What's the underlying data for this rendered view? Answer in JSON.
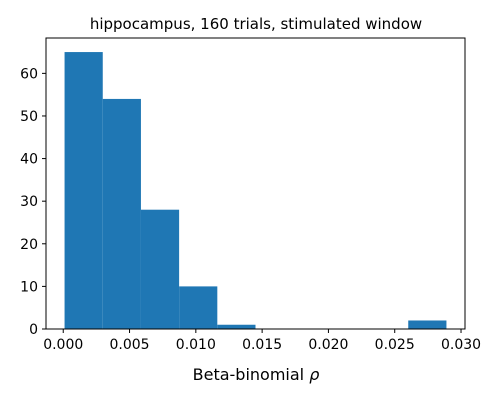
{
  "chart_data": {
    "type": "bar",
    "title": "hippocampus, 160 trials, stimulated window",
    "xlabel": "Beta-binomial ",
    "xlabel_symbol": "ρ",
    "ylabel": "",
    "bin_edges": [
      0.0001,
      0.00298,
      0.00586,
      0.00874,
      0.01162,
      0.0145,
      0.01738,
      0.02026,
      0.02314,
      0.02602,
      0.0289
    ],
    "values": [
      65,
      54,
      28,
      10,
      1,
      0,
      0,
      0,
      0,
      2
    ],
    "xlim": [
      -0.0013,
      0.0303
    ],
    "ylim": [
      0,
      68.3
    ],
    "x_ticks": [
      {
        "value": 0.0,
        "label": "0.000"
      },
      {
        "value": 0.005,
        "label": "0.005"
      },
      {
        "value": 0.01,
        "label": "0.010"
      },
      {
        "value": 0.015,
        "label": "0.015"
      },
      {
        "value": 0.02,
        "label": "0.020"
      },
      {
        "value": 0.025,
        "label": "0.025"
      },
      {
        "value": 0.03,
        "label": "0.030"
      }
    ],
    "y_ticks": [
      {
        "value": 0,
        "label": "0"
      },
      {
        "value": 10,
        "label": "10"
      },
      {
        "value": 20,
        "label": "20"
      },
      {
        "value": 30,
        "label": "30"
      },
      {
        "value": 40,
        "label": "40"
      },
      {
        "value": 50,
        "label": "50"
      },
      {
        "value": 60,
        "label": "60"
      }
    ],
    "grid": false,
    "bar_color": "#1f77b4"
  }
}
